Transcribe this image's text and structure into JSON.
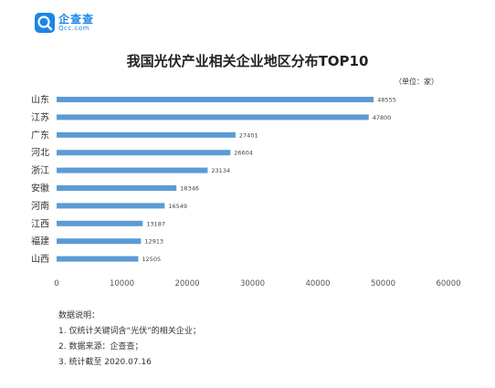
{
  "logo": {
    "name_cn": "企查查",
    "name_en": "Qcc.com"
  },
  "unit": "（单位：家）",
  "notes": {
    "heading": "数据说明：",
    "items": [
      "1. 仅统计关键词含“光伏”的相关企业；",
      "2. 数据来源：企查查；",
      "3. 统计截至 2020.07.16"
    ]
  },
  "colors": {
    "bar": "#5b9bd5",
    "brand": "#1a86e8"
  },
  "chart_data": {
    "type": "bar",
    "orientation": "horizontal",
    "title": "我国光伏产业相关企业地区分布TOP10",
    "categories": [
      "山东",
      "江苏",
      "广东",
      "河北",
      "浙江",
      "安徽",
      "河南",
      "江西",
      "福建",
      "山西"
    ],
    "values": [
      48555,
      47800,
      27401,
      26604,
      23134,
      18346,
      16549,
      13187,
      12913,
      12505
    ],
    "value_labels": [
      "48555",
      "47800",
      "27401",
      "26604",
      "23134",
      "18346",
      "16549",
      "13187",
      "12913",
      "12505"
    ],
    "x_ticks": [
      "0",
      "10000",
      "20000",
      "30000",
      "40000",
      "50000",
      "60000"
    ],
    "xlim": [
      0,
      60000
    ],
    "grid": false,
    "legend": "none"
  }
}
